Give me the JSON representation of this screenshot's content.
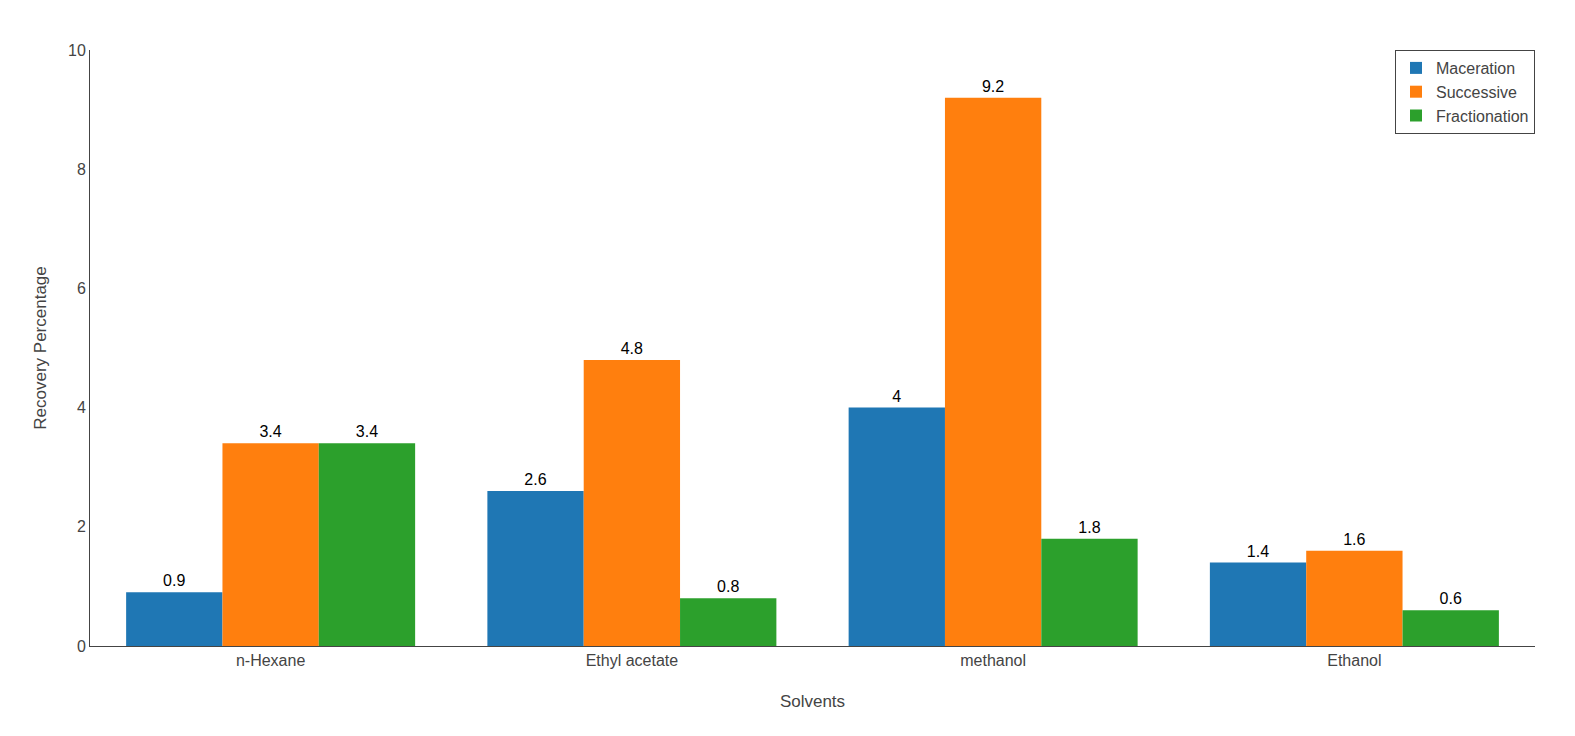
{
  "chart_data": {
    "type": "bar",
    "categories": [
      "n-Hexane",
      "Ethyl acetate",
      "methanol",
      "Ethanol"
    ],
    "series": [
      {
        "name": "Maceration",
        "values": [
          0.9,
          2.6,
          4.0,
          1.4
        ]
      },
      {
        "name": "Successive",
        "values": [
          3.4,
          4.8,
          9.2,
          1.6
        ]
      },
      {
        "name": "Fractionation",
        "values": [
          3.4,
          0.8,
          1.8,
          0.6
        ]
      }
    ],
    "xlabel": "Solvents",
    "ylabel": "Recovery Percentage",
    "ylim": [
      0,
      10
    ],
    "yticks": [
      0,
      2,
      4,
      6,
      8,
      10
    ],
    "grid": false,
    "legend": "upper right",
    "data_labels": true
  }
}
